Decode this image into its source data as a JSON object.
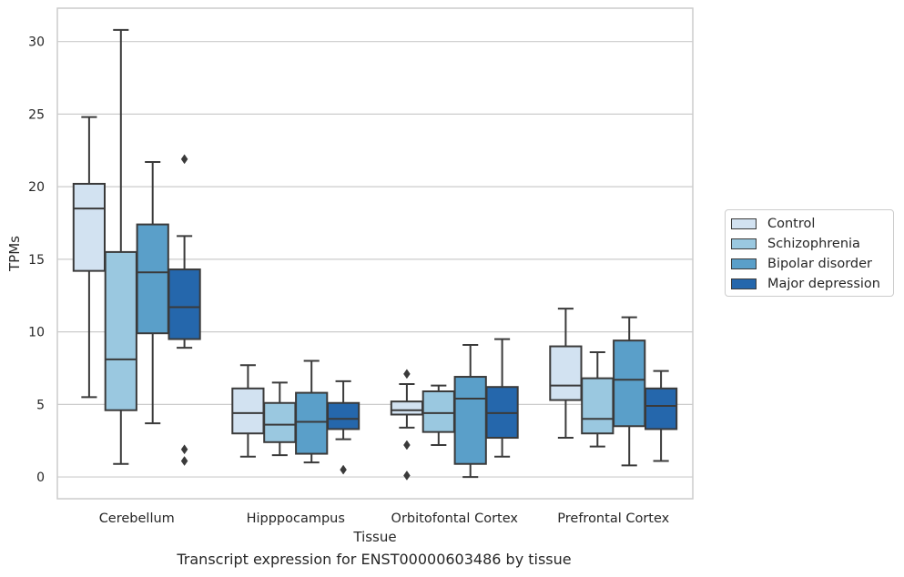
{
  "chart_data": {
    "type": "box",
    "xlabel": "Tissue",
    "ylabel": "TPMs",
    "ylim": [
      -1.5,
      32.3
    ],
    "yticks": [
      0,
      5,
      10,
      15,
      20,
      25,
      30
    ],
    "grid": "horizontal",
    "legend_placement": "outside-right",
    "categories": [
      "Cerebellum",
      "Hipppocampus",
      "Orbitofontal Cortex",
      "Prefrontal Cortex"
    ],
    "series": [
      {
        "name": "Control",
        "color": "#d2e2f1",
        "boxes": [
          {
            "min": 5.5,
            "q1": 14.2,
            "median": 18.5,
            "q3": 20.2,
            "max": 24.8,
            "outliers": []
          },
          {
            "min": 1.4,
            "q1": 3.0,
            "median": 4.4,
            "q3": 6.1,
            "max": 7.7,
            "outliers": []
          },
          {
            "min": 3.4,
            "q1": 4.3,
            "median": 4.6,
            "q3": 5.2,
            "max": 6.4,
            "outliers": [
              7.1,
              2.2,
              0.1
            ]
          },
          {
            "min": 2.7,
            "q1": 5.3,
            "median": 6.3,
            "q3": 9.0,
            "max": 11.6,
            "outliers": []
          }
        ]
      },
      {
        "name": "Schizophrenia",
        "color": "#9ac8e0",
        "boxes": [
          {
            "min": 0.9,
            "q1": 4.6,
            "median": 8.1,
            "q3": 15.5,
            "max": 30.8,
            "outliers": []
          },
          {
            "min": 1.5,
            "q1": 2.4,
            "median": 3.6,
            "q3": 5.1,
            "max": 6.5,
            "outliers": []
          },
          {
            "min": 2.2,
            "q1": 3.1,
            "median": 4.4,
            "q3": 5.9,
            "max": 6.3,
            "outliers": []
          },
          {
            "min": 2.1,
            "q1": 3.0,
            "median": 4.0,
            "q3": 6.8,
            "max": 8.6,
            "outliers": []
          }
        ]
      },
      {
        "name": "Bipolar disorder",
        "color": "#5a9fc9",
        "boxes": [
          {
            "min": 3.7,
            "q1": 9.9,
            "median": 14.1,
            "q3": 17.4,
            "max": 21.7,
            "outliers": []
          },
          {
            "min": 1.0,
            "q1": 1.6,
            "median": 3.8,
            "q3": 5.8,
            "max": 8.0,
            "outliers": []
          },
          {
            "min": 0.0,
            "q1": 0.9,
            "median": 5.4,
            "q3": 6.9,
            "max": 9.1,
            "outliers": []
          },
          {
            "min": 0.8,
            "q1": 3.5,
            "median": 6.7,
            "q3": 9.4,
            "max": 11.0,
            "outliers": []
          }
        ]
      },
      {
        "name": "Major depression",
        "color": "#2567ac",
        "boxes": [
          {
            "min": 8.9,
            "q1": 9.5,
            "median": 11.7,
            "q3": 14.3,
            "max": 16.6,
            "outliers": [
              21.9,
              1.9,
              1.1
            ]
          },
          {
            "min": 2.6,
            "q1": 3.3,
            "median": 4.0,
            "q3": 5.1,
            "max": 6.6,
            "outliers": [
              0.5
            ]
          },
          {
            "min": 1.4,
            "q1": 2.7,
            "median": 4.4,
            "q3": 6.2,
            "max": 9.5,
            "outliers": []
          },
          {
            "min": 1.1,
            "q1": 3.3,
            "median": 4.9,
            "q3": 6.1,
            "max": 7.3,
            "outliers": []
          }
        ]
      }
    ],
    "caption": "Transcript expression for ENST00000603486 by tissue"
  },
  "colors": {
    "grid": "#cccccc",
    "axes_edge": "#cccccc",
    "box_edge": "#3a3a3a",
    "text": "#262626"
  }
}
